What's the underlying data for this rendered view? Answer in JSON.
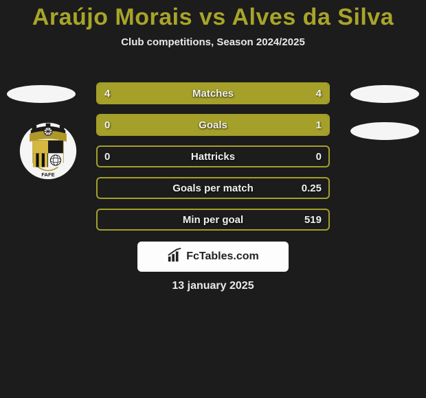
{
  "title_left": "Araújo Morais",
  "title_vs": "vs",
  "title_right": "Alves da Silva",
  "title_color": "#a8a429",
  "subtitle": "Club competitions, Season 2024/2025",
  "background_color": "#1c1c1c",
  "bar_border_color": "#a4a029",
  "fill_left_color": "#a4a029",
  "fill_right_color": "#a4a029",
  "text_color": "#f0f0f0",
  "bars": [
    {
      "label": "Matches",
      "left": "4",
      "right": "4",
      "left_pct": 50,
      "right_pct": 50
    },
    {
      "label": "Goals",
      "left": "0",
      "right": "1",
      "left_pct": 20,
      "right_pct": 80
    },
    {
      "label": "Hattricks",
      "left": "0",
      "right": "0",
      "left_pct": 0,
      "right_pct": 0
    },
    {
      "label": "Goals per match",
      "left": "",
      "right": "0.25",
      "left_pct": 0,
      "right_pct": 0
    },
    {
      "label": "Min per goal",
      "left": "",
      "right": "519",
      "left_pct": 0,
      "right_pct": 0
    }
  ],
  "brand": "FcTables.com",
  "date": "13 january 2025",
  "left_club": {
    "shield_outer": "#f2e6a0",
    "shield_band": "#b09828",
    "stripe_dark": "#101010",
    "stripe_gold": "#d4b840",
    "castle": "#1a1a1a",
    "text": "FAFE"
  }
}
